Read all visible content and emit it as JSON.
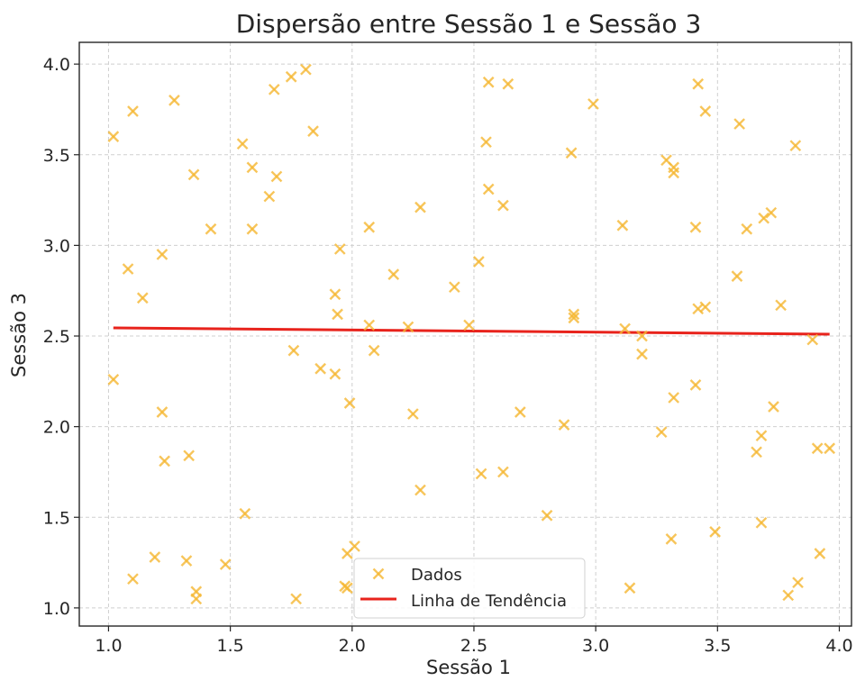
{
  "chart_data": {
    "type": "scatter",
    "title": "Dispersão entre Sessão 1 e Sessão 3",
    "xlabel": "Sessão 1",
    "ylabel": "Sessão 3",
    "xlim": [
      0.88,
      4.05
    ],
    "ylim": [
      0.9,
      4.12
    ],
    "x_ticks": [
      1.0,
      1.5,
      2.0,
      2.5,
      3.0,
      3.5,
      4.0
    ],
    "x_tick_labels": [
      "1.0",
      "1.5",
      "2.0",
      "2.5",
      "3.0",
      "3.5",
      "4.0"
    ],
    "y_ticks": [
      1.0,
      1.5,
      2.0,
      2.5,
      3.0,
      3.5,
      4.0
    ],
    "y_tick_labels": [
      "1.0",
      "1.5",
      "2.0",
      "2.5",
      "3.0",
      "3.5",
      "4.0"
    ],
    "grid": true,
    "legend_position": "bottom-center",
    "series": [
      {
        "name": "Dados",
        "kind": "scatter",
        "marker": "x",
        "color": "#f5b731",
        "points": [
          [
            1.02,
            3.6
          ],
          [
            1.1,
            3.74
          ],
          [
            1.27,
            3.8
          ],
          [
            1.35,
            3.39
          ],
          [
            1.42,
            3.09
          ],
          [
            1.08,
            2.87
          ],
          [
            1.14,
            2.71
          ],
          [
            1.22,
            2.95
          ],
          [
            1.02,
            2.26
          ],
          [
            1.22,
            2.08
          ],
          [
            1.23,
            1.81
          ],
          [
            1.33,
            1.84
          ],
          [
            1.19,
            1.28
          ],
          [
            1.32,
            1.26
          ],
          [
            1.1,
            1.16
          ],
          [
            1.36,
            1.09
          ],
          [
            1.36,
            1.05
          ],
          [
            1.48,
            1.24
          ],
          [
            1.55,
            3.56
          ],
          [
            1.59,
            3.43
          ],
          [
            1.66,
            3.27
          ],
          [
            1.69,
            3.38
          ],
          [
            1.59,
            3.09
          ],
          [
            1.68,
            3.86
          ],
          [
            1.75,
            3.93
          ],
          [
            1.81,
            3.97
          ],
          [
            1.84,
            3.63
          ],
          [
            1.56,
            1.52
          ],
          [
            1.76,
            2.42
          ],
          [
            1.87,
            2.32
          ],
          [
            1.93,
            2.73
          ],
          [
            1.94,
            2.62
          ],
          [
            1.95,
            2.98
          ],
          [
            1.93,
            2.29
          ],
          [
            1.99,
            2.13
          ],
          [
            1.77,
            1.05
          ],
          [
            1.97,
            1.12
          ],
          [
            1.98,
            1.11
          ],
          [
            1.98,
            1.3
          ],
          [
            2.01,
            1.34
          ],
          [
            2.07,
            3.1
          ],
          [
            2.07,
            2.56
          ],
          [
            2.09,
            2.42
          ],
          [
            2.17,
            2.84
          ],
          [
            2.23,
            2.55
          ],
          [
            2.25,
            2.07
          ],
          [
            2.28,
            3.21
          ],
          [
            2.28,
            1.65
          ],
          [
            2.42,
            2.77
          ],
          [
            2.48,
            2.56
          ],
          [
            2.52,
            2.91
          ],
          [
            2.53,
            1.74
          ],
          [
            2.55,
            3.57
          ],
          [
            2.56,
            3.31
          ],
          [
            2.56,
            3.9
          ],
          [
            2.62,
            3.22
          ],
          [
            2.62,
            1.75
          ],
          [
            2.64,
            3.89
          ],
          [
            2.69,
            2.08
          ],
          [
            2.8,
            1.51
          ],
          [
            2.87,
            2.01
          ],
          [
            2.9,
            3.51
          ],
          [
            2.91,
            2.62
          ],
          [
            2.91,
            2.6
          ],
          [
            2.99,
            3.78
          ],
          [
            3.11,
            3.11
          ],
          [
            3.12,
            2.54
          ],
          [
            3.14,
            1.11
          ],
          [
            3.19,
            2.5
          ],
          [
            3.19,
            2.4
          ],
          [
            3.27,
            1.97
          ],
          [
            3.29,
            3.47
          ],
          [
            3.32,
            3.43
          ],
          [
            3.32,
            3.4
          ],
          [
            3.31,
            1.38
          ],
          [
            3.32,
            2.16
          ],
          [
            3.41,
            3.1
          ],
          [
            3.41,
            2.23
          ],
          [
            3.42,
            3.89
          ],
          [
            3.42,
            2.65
          ],
          [
            3.45,
            3.74
          ],
          [
            3.45,
            2.66
          ],
          [
            3.49,
            1.42
          ],
          [
            3.58,
            2.83
          ],
          [
            3.59,
            3.67
          ],
          [
            3.62,
            3.09
          ],
          [
            3.66,
            1.86
          ],
          [
            3.68,
            1.95
          ],
          [
            3.68,
            1.47
          ],
          [
            3.69,
            3.15
          ],
          [
            3.72,
            3.18
          ],
          [
            3.73,
            2.11
          ],
          [
            3.76,
            2.67
          ],
          [
            3.79,
            1.07
          ],
          [
            3.82,
            3.55
          ],
          [
            3.83,
            1.14
          ],
          [
            3.89,
            2.48
          ],
          [
            3.91,
            1.88
          ],
          [
            3.92,
            1.3
          ],
          [
            3.96,
            1.88
          ]
        ]
      },
      {
        "name": "Linha de Tendência",
        "kind": "line",
        "color": "#e8231c",
        "points": [
          [
            1.02,
            2.545
          ],
          [
            3.96,
            2.51
          ]
        ]
      }
    ]
  }
}
